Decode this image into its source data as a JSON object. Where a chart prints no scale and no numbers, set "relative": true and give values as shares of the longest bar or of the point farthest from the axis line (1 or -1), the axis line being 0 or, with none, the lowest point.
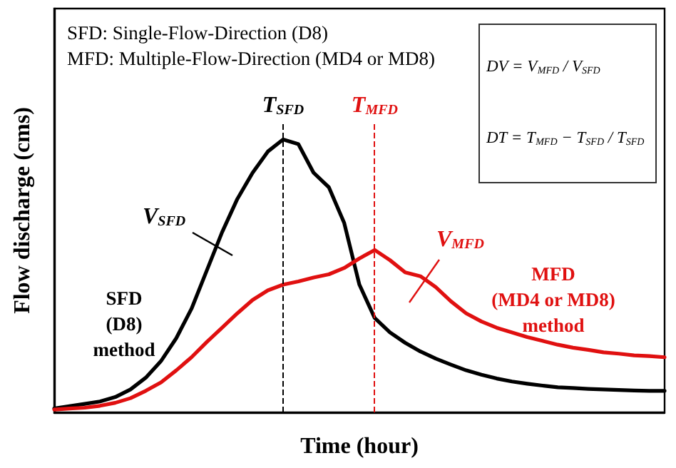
{
  "chart_data": {
    "type": "line",
    "relative": true,
    "xlabel": "Time (hour)",
    "ylabel": "Flow discharge (cms)",
    "legend": false,
    "grid": false,
    "marker": "none",
    "categories": [
      null,
      null,
      null,
      null,
      null,
      null,
      null,
      null,
      null,
      null,
      null,
      null,
      null,
      null,
      null,
      null,
      null,
      null,
      null,
      null,
      null,
      null,
      null,
      null,
      null,
      null,
      null,
      null,
      null,
      null,
      null,
      null,
      null,
      null,
      null,
      null,
      null,
      null,
      null,
      null,
      null
    ],
    "series": [
      {
        "name": "SFD\n(D8)\nmethod",
        "color": "#000000",
        "line_style": "solid",
        "values": [
          0.014,
          0.023,
          0.031,
          0.04,
          0.056,
          0.084,
          0.127,
          0.188,
          0.272,
          0.38,
          0.52,
          0.66,
          0.782,
          0.878,
          0.956,
          1,
          0.983,
          0.878,
          0.825,
          0.695,
          0.468,
          0.346,
          0.293,
          0.255,
          0.223,
          0.197,
          0.175,
          0.154,
          0.138,
          0.124,
          0.113,
          0.105,
          0.098,
          0.092,
          0.089,
          0.086,
          0.084,
          0.082,
          0.08,
          0.079,
          0.079
        ]
      },
      {
        "name": "MFD\n(MD4 or MD8)\nmethod",
        "color": "#e01010",
        "line_style": "solid",
        "values": [
          0.01,
          0.014,
          0.017,
          0.024,
          0.035,
          0.052,
          0.079,
          0.11,
          0.154,
          0.202,
          0.258,
          0.31,
          0.363,
          0.412,
          0.447,
          0.468,
          0.48,
          0.494,
          0.506,
          0.529,
          0.564,
          0.595,
          0.558,
          0.513,
          0.499,
          0.459,
          0.407,
          0.363,
          0.333,
          0.31,
          0.293,
          0.276,
          0.262,
          0.248,
          0.237,
          0.229,
          0.22,
          0.215,
          0.209,
          0.206,
          0.202
        ]
      }
    ],
    "annotations": [
      "SFD: Single-Flow-Direction (D8)",
      "MFD: Multiple-Flow-Direction (MD4 or MD8)",
      "DV = V$_{MFD}$ / V$_{SFD}$",
      "DT = T$_{MFD}$ − T$_{SFD}$ / T$_{SFD}$",
      "V$_{SFD}$",
      "V$_{MFD}$",
      "T$_{SFD}$",
      "T$_{MFD}$"
    ]
  }
}
